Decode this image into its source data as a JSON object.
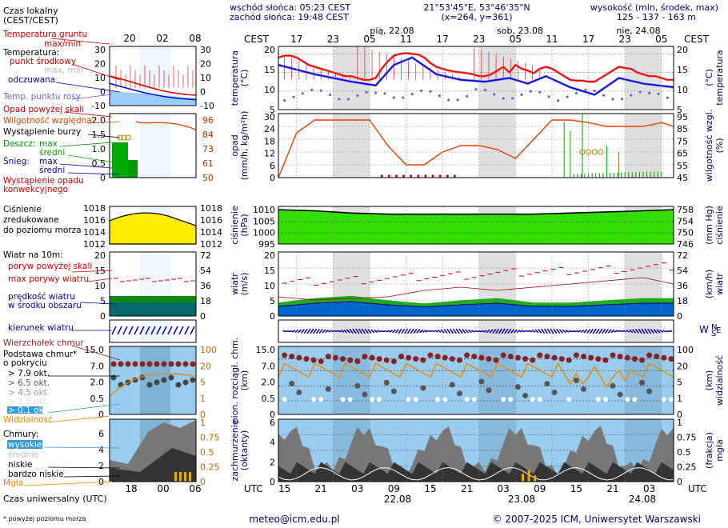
{
  "header": {
    "sunrise": "wschód słońca: 05:23 CEST",
    "sunset": "zachód słońca: 19:48 CEST",
    "coords": "21°53'45\"E, 53°46'35\"N",
    "grid": "(x=264,  y=361)",
    "elev_title": "wysokość (min, środek, max)",
    "elev_values": "125 - 137 - 163 m",
    "tz": "CEST",
    "days": [
      "pią, 22.08",
      "sob, 23.08",
      "nie, 24.08"
    ],
    "hours": [
      "17",
      "23",
      "05",
      "11",
      "17",
      "23",
      "05",
      "11",
      "17",
      "23",
      "05",
      "11",
      "17"
    ]
  },
  "legend": {
    "tz_label": "Czas lokalny\n(CEST/CEST)",
    "hours": [
      "20",
      "02",
      "08"
    ],
    "temp": {
      "ground": "Temperatura gruntu",
      "ground_sub": "max/min",
      "temp": "Temperatura:",
      "mid": "punkt środkowy",
      "mid_sub": "max, min",
      "felt": "odczuwana",
      "dew": "Temp. punktu rosy",
      "ticks": [
        "30",
        "20",
        "10",
        "0",
        "-10"
      ]
    },
    "precip": {
      "above": "Opad powyżej skali",
      "humidity": "Wilgotność względna",
      "storm": "Wystąpienie burzy",
      "rain": "Deszcz:",
      "rain_max": "max",
      "rain_mean": "średni",
      "snow": "Śnieg:",
      "snow_max": "max",
      "snow_mean": "średni",
      "occurrence": "Wystąpienie opadu\nkonwekcyjnego",
      "ticks_l": [
        "2.0",
        "1.5",
        "1.0",
        "0.5",
        "0"
      ],
      "ticks_r": [
        "96",
        "84",
        "73",
        "61",
        "50"
      ]
    },
    "pressure": {
      "label": "Ciśnienie\nzredukowane\ndo poziomu morza",
      "ticks": [
        "1018",
        "1016",
        "1014",
        "1012"
      ]
    },
    "wind": {
      "label": "Wiatr na 10m:",
      "gust": "poryw powyżej skali",
      "max": "max porywy wiatru",
      "speed": "prędkość wiatru\nw środku obszaru",
      "ticks_l": [
        "20",
        "15",
        "10",
        "5",
        "0"
      ],
      "ticks_r": [
        "72",
        "54",
        "36",
        "18",
        "0"
      ]
    },
    "dir": {
      "label": "kierunek wiatru"
    },
    "cloudbase": {
      "top": "Wierzchołek chmur",
      "base": "Podstawa chmur*\no pokryciu",
      "o79": "> 7.9 okt.",
      "o65": "> 6.5 okt.",
      "o45": "> 4.5 okt.",
      "o25": "> 2.5 okt.",
      "o01": "> 0.1 okt.",
      "vis": "Widzialność",
      "ticks_l": [
        "15.0",
        "7.0",
        "2.0",
        "0.5",
        "0"
      ],
      "ticks_r": [
        "100",
        "20",
        "5",
        "1",
        "0"
      ]
    },
    "clouds": {
      "label": "Chmury:",
      "high": "wysokie",
      "mid": "średnie",
      "low": "niskie",
      "vlow": "bardzo niskie",
      "fog": "Mgła",
      "ticks_l": [
        "6",
        "4",
        "2",
        "0"
      ],
      "ticks_r": [
        "1",
        "0.75",
        "0.5",
        "0.25",
        "0"
      ]
    },
    "utc_hours": [
      "18",
      "00",
      "06"
    ],
    "utc_label": "Czas uniwersalny (UTC)",
    "footnote": "* powyżej poziomu morza"
  },
  "panels": {
    "temp": {
      "ylabel": "temperatura\n(°C)",
      "ticks": [
        "20",
        "15",
        "10",
        "5"
      ]
    },
    "precip": {
      "ylabel": "opad\n(mm/h, kg/m²h)",
      "ylabel_r": "wilgotność wzgl.\n(%)",
      "ticks_l": [
        "30",
        "24",
        "18",
        "12",
        "6",
        "0"
      ],
      "ticks_r": [
        "95",
        "85",
        "75",
        "65",
        "55",
        "45"
      ]
    },
    "pressure": {
      "ylabel": "ciśnienie\n(hPa)",
      "ylabel_r": "(mm Hg)\nciśnienie",
      "ticks_l": [
        "1010",
        "1005",
        "1000",
        "995"
      ],
      "ticks_r": [
        "758",
        "754",
        "750",
        "746"
      ]
    },
    "wind": {
      "ylabel": "wiatr\n(m/s)",
      "ylabel_r": "(km/h)\nwiatr",
      "ticks_l": [
        "20",
        "15",
        "10",
        "5",
        "0"
      ],
      "ticks_r": [
        "72",
        "54",
        "36",
        "18",
        "0"
      ]
    },
    "cloudbase": {
      "ylabel": "pion. rozciągł. chm.\n(km)",
      "ylabel_r": "(km)\nwidzialność",
      "ticks_l": [
        "15.0",
        "7.0",
        "2.0",
        "0.5",
        "0"
      ],
      "ticks_r": [
        "100",
        "20",
        "5",
        "1",
        "0"
      ]
    },
    "clouds": {
      "ylabel": "zachmurzenie\n(oktanty)",
      "ylabel_r": "(frakcja)\nmgła",
      "ticks_l": [
        "6",
        "4",
        "2",
        "0"
      ],
      "ticks_r": [
        "1",
        "0.75",
        "0.5",
        "0.25",
        "0"
      ]
    }
  },
  "footer": {
    "utc": "UTC",
    "utc_hours": [
      "15",
      "21",
      "03",
      "09",
      "15",
      "21",
      "03",
      "09",
      "15",
      "21",
      "03",
      "09",
      "15"
    ],
    "dates": [
      "22.08",
      "23.08",
      "24.08"
    ],
    "email": "meteo@icm.edu.pl",
    "copyright": "© 2007-2025 ICM, Uniwersytet Warszawski"
  },
  "compass": {
    "n": "N",
    "w": "W",
    "s": "S",
    "e": "E"
  },
  "colors": {
    "temp": "#dd0000",
    "felt": "#0000cc",
    "dew": "#6666cc",
    "humidity": "#dd4400",
    "pressure_fill": "#33dd00",
    "wind_dark": "#007700",
    "wind_blue": "#0066cc",
    "sky": "#99ccee",
    "orange": "#ee8800",
    "vis": "#ee8800"
  },
  "chart_data": {
    "type": "line",
    "title": "Meteogram 21°53'45\"E, 53°46'35\"N",
    "x_range_hours_cest": [
      14,
      79
    ],
    "series": [
      {
        "name": "temperatura (°C)",
        "x": [
          14,
          15,
          16,
          17,
          18,
          19,
          20,
          21,
          22,
          23,
          24,
          25,
          26,
          27,
          28,
          29,
          30,
          31,
          32,
          33,
          34,
          35,
          36,
          37,
          38,
          39,
          40,
          41,
          42,
          43,
          44,
          45,
          46,
          47,
          48,
          49,
          50,
          51,
          52,
          53,
          54,
          55,
          56,
          57,
          58,
          59,
          60,
          61,
          62,
          63,
          64,
          65,
          66,
          67,
          68,
          69,
          70,
          71,
          72,
          73,
          74,
          75,
          76,
          77,
          78,
          79
        ],
        "values": [
          19,
          19.5,
          19.5,
          19,
          18,
          17,
          16.5,
          16,
          15.5,
          15,
          14.5,
          14,
          14,
          13.5,
          13,
          13,
          13.5,
          16,
          18,
          19.5,
          20,
          20.2,
          20,
          19.8,
          19,
          17.5,
          16.5,
          16,
          15.5,
          15.2,
          15,
          14.8,
          14.5,
          14,
          14,
          14.5,
          15.5,
          16.5,
          15,
          17,
          16,
          15.5,
          14.8,
          16,
          16.5,
          16,
          15,
          14,
          13,
          12.8,
          12.8,
          12.5,
          12.5,
          13.5,
          14.5,
          15.5,
          16.5,
          16.2,
          16,
          15,
          14.5,
          14,
          14,
          13.5,
          13,
          13
        ]
      },
      {
        "name": "temperatura odczuwana (°C)",
        "x": [
          14,
          20,
          26,
          30,
          33,
          36,
          40,
          44,
          48,
          52,
          55,
          58,
          62,
          66,
          70,
          74,
          79
        ],
        "values": [
          17,
          14.5,
          12.5,
          11.5,
          17,
          19,
          14.5,
          13,
          12.5,
          13.5,
          12,
          14,
          11,
          9,
          13.5,
          12,
          11
        ]
      },
      {
        "name": "temperatura punktu rosy (°C)",
        "x": [
          14,
          24,
          30,
          40,
          50,
          60,
          70,
          79
        ],
        "values": [
          9,
          8.5,
          8,
          9,
          10,
          8.5,
          9,
          9
        ]
      },
      {
        "name": "wilgotność wzgl. (%)",
        "x": [
          14,
          17,
          20,
          23,
          26,
          29,
          32,
          35,
          38,
          41,
          44,
          47,
          50,
          53,
          56,
          59,
          62,
          65,
          68,
          71,
          74,
          77,
          79
        ],
        "values": [
          45,
          80,
          90,
          90,
          90,
          90,
          70,
          55,
          55,
          65,
          70,
          70,
          67,
          60,
          75,
          90,
          90,
          88,
          85,
          85,
          85,
          88,
          85
        ]
      },
      {
        "name": "ciśnienie (hPa)",
        "x": [
          14,
          20,
          26,
          32,
          38,
          44,
          50,
          56,
          62,
          68,
          74,
          79
        ],
        "values": [
          1010.5,
          1010,
          1009,
          1008.5,
          1008.5,
          1008.5,
          1008.5,
          1008.5,
          1009,
          1009.5,
          1010,
          1010.5
        ]
      },
      {
        "name": "prędkość wiatru (m/s)",
        "x": [
          14,
          20,
          26,
          32,
          38,
          44,
          50,
          56,
          62,
          68,
          74,
          79
        ],
        "values": [
          3,
          4,
          4.5,
          3.5,
          2.8,
          3.5,
          4,
          3,
          3,
          3.5,
          4,
          4
        ]
      },
      {
        "name": "max porywy wiatru (m/s)",
        "x": [
          14,
          20,
          26,
          32,
          38,
          44,
          50,
          56,
          62,
          68,
          74,
          79
        ],
        "values": [
          9,
          8,
          8.5,
          9,
          11,
          12,
          11,
          12,
          13,
          14,
          15,
          13
        ]
      }
    ],
    "ylim_temp": [
      5,
      22
    ],
    "ylim_precip_mm": [
      0,
      30
    ],
    "ylim_humidity": [
      45,
      95
    ],
    "ylim_pressure_hpa": [
      995,
      1012
    ],
    "ylim_wind_ms": [
      0,
      20
    ],
    "ylim_clouds_okt": [
      0,
      8
    ]
  }
}
